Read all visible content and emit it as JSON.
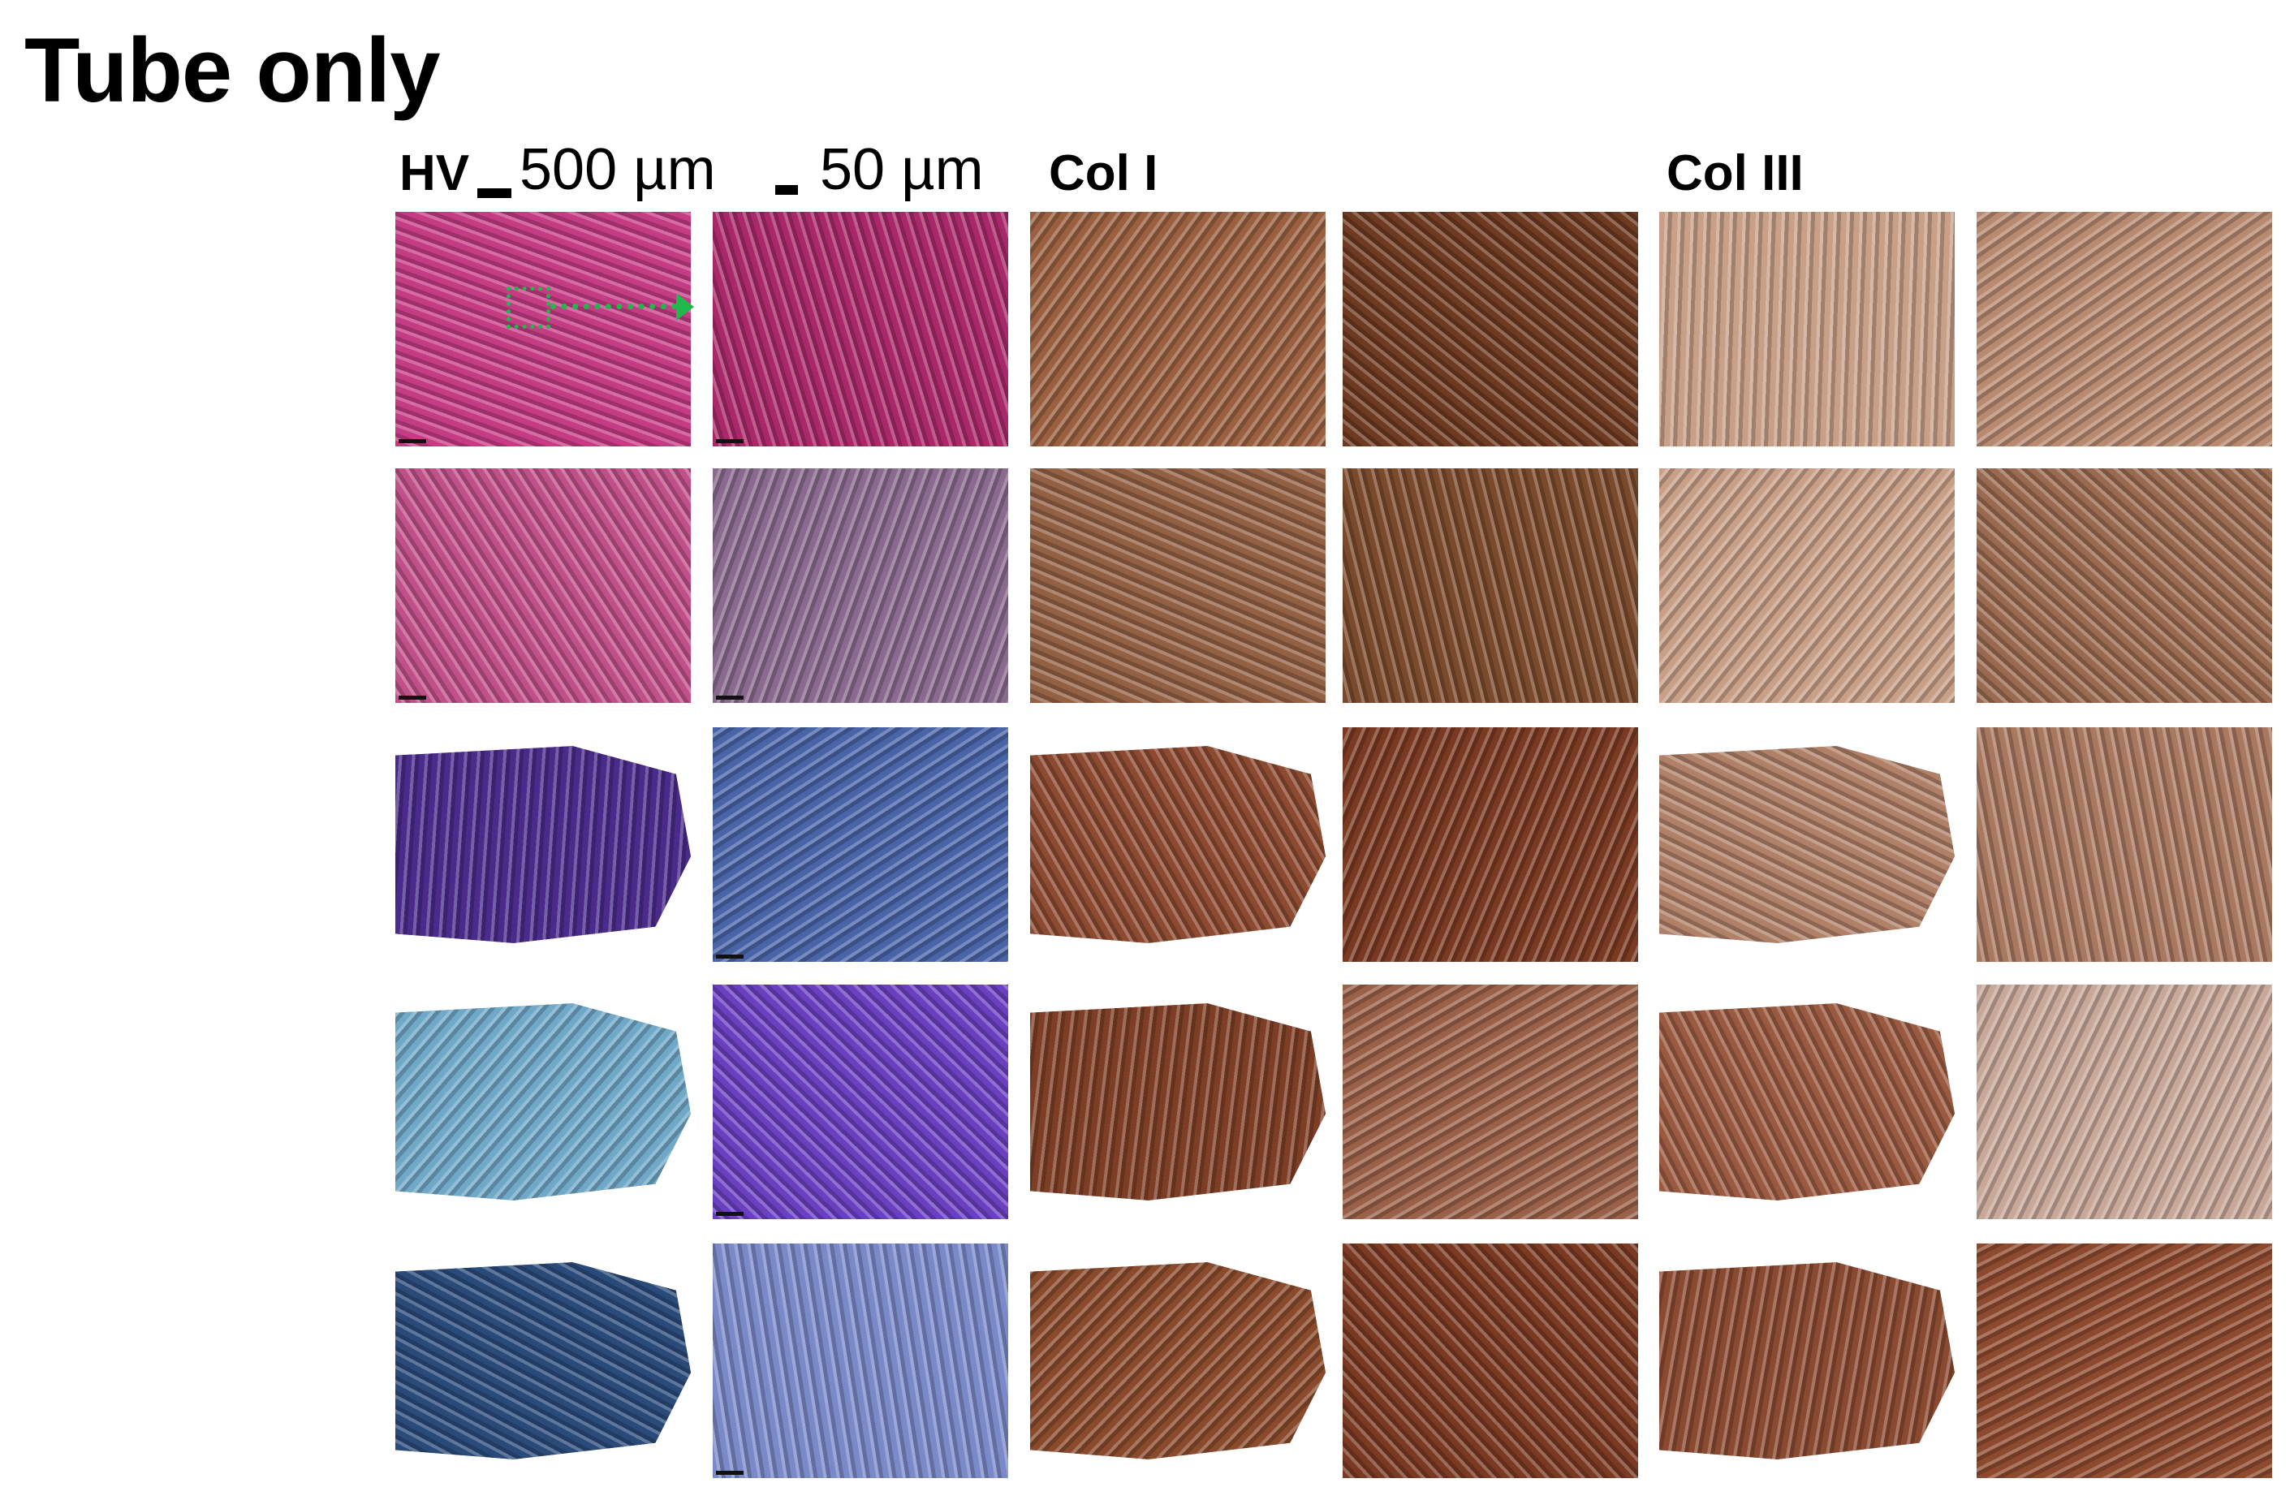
{
  "figure": {
    "title": "Tube only",
    "headers": {
      "stain_left": "HV",
      "scale_low": "500 µm",
      "scale_high": "50 µm",
      "col1": "Col I",
      "col3": "Col III"
    },
    "annotation_color": "#1fb84a",
    "row_palettes": [
      [
        "#c43c84",
        "#a8286a",
        "#9a6040",
        "#6e3a22",
        "#c8a088",
        "#b88a70"
      ],
      [
        "#c0508a",
        "#8a6a8e",
        "#946044",
        "#7a4a2c",
        "#c8a088",
        "#9a6a50"
      ],
      [
        "#4a2a8a",
        "#4a64a8",
        "#8c4a30",
        "#7a3a22",
        "#b08068",
        "#a87860"
      ],
      [
        "#70a8c8",
        "#6a40c0",
        "#7e3e26",
        "#9a6048",
        "#9a5a40",
        "#c8a898"
      ],
      [
        "#2a4a7a",
        "#7a8ac8",
        "#8a4a2c",
        "#7a3a22",
        "#8a4a30",
        "#8e4a2e"
      ]
    ],
    "rows": 5,
    "columns": 6
  }
}
